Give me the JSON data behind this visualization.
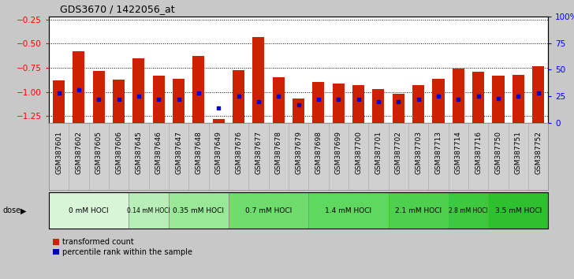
{
  "title": "GDS3670 / 1422056_at",
  "samples": [
    "GSM387601",
    "GSM387602",
    "GSM387605",
    "GSM387606",
    "GSM387645",
    "GSM387646",
    "GSM387647",
    "GSM387648",
    "GSM387649",
    "GSM387676",
    "GSM387677",
    "GSM387678",
    "GSM387679",
    "GSM387698",
    "GSM387699",
    "GSM387700",
    "GSM387701",
    "GSM387702",
    "GSM387703",
    "GSM387713",
    "GSM387714",
    "GSM387716",
    "GSM387750",
    "GSM387751",
    "GSM387752"
  ],
  "bar_values": [
    -0.88,
    -0.58,
    -0.78,
    -0.87,
    -0.65,
    -0.83,
    -0.86,
    -0.63,
    -1.28,
    -0.77,
    -0.43,
    -0.85,
    -1.07,
    -0.9,
    -0.91,
    -0.93,
    -0.97,
    -1.02,
    -0.93,
    -0.86,
    -0.76,
    -0.79,
    -0.83,
    -0.82,
    -0.73
  ],
  "percentile_pct": [
    28,
    31,
    22,
    22,
    25,
    22,
    22,
    28,
    14,
    25,
    20,
    25,
    17,
    22,
    22,
    22,
    20,
    20,
    22,
    25,
    22,
    25,
    23,
    25,
    28
  ],
  "dose_groups": [
    {
      "label": "0 mM HOCl",
      "start": 0,
      "end": 4,
      "color": "#d8f5d8"
    },
    {
      "label": "0.14 mM HOCl",
      "start": 4,
      "end": 6,
      "color": "#b8efb8"
    },
    {
      "label": "0.35 mM HOCl",
      "start": 6,
      "end": 9,
      "color": "#98e898"
    },
    {
      "label": "0.7 mM HOCl",
      "start": 9,
      "end": 13,
      "color": "#6edd6e"
    },
    {
      "label": "1.4 mM HOCl",
      "start": 13,
      "end": 17,
      "color": "#5ed85e"
    },
    {
      "label": "2.1 mM HOCl",
      "start": 17,
      "end": 20,
      "color": "#4ecf4e"
    },
    {
      "label": "2.8 mM HOCl",
      "start": 20,
      "end": 22,
      "color": "#3ec83e"
    },
    {
      "label": "3.5 mM HOCl",
      "start": 22,
      "end": 25,
      "color": "#2ec02e"
    }
  ],
  "ylim_left": [
    -1.32,
    -0.22
  ],
  "yticks_left": [
    -1.25,
    -1.0,
    -0.75,
    -0.5,
    -0.25
  ],
  "yticks_right_pct": [
    0,
    25,
    50,
    75,
    100
  ],
  "bar_color": "#cc2200",
  "percentile_color": "#0000cc",
  "bg_plot": "#ffffff",
  "bg_fig": "#c8c8c8",
  "bg_xlabels": "#d8d8d8",
  "title_fontsize": 9,
  "label_fontsize": 6.5,
  "tick_fontsize": 7.5
}
